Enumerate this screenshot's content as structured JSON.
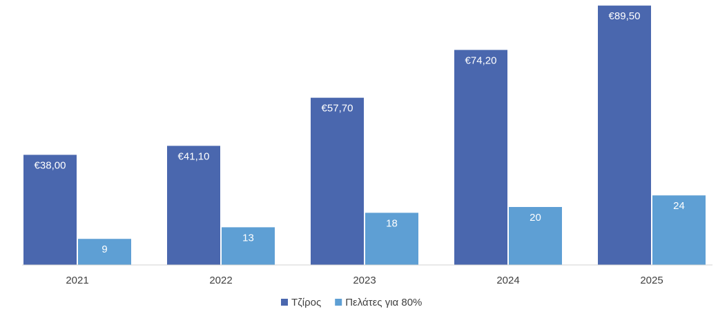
{
  "chart_data": {
    "type": "bar",
    "categories": [
      "2021",
      "2022",
      "2023",
      "2024",
      "2025"
    ],
    "series": [
      {
        "name": "Τζίρος",
        "color": "#4a67ae",
        "values": [
          38,
          41.1,
          57.7,
          74.2,
          89.5
        ],
        "value_labels": [
          "€38,00",
          "€41,10",
          "€57,70",
          "€74,20",
          "€89,50"
        ]
      },
      {
        "name": "Πελάτες για 80%",
        "color": "#5e9fd4",
        "values": [
          9,
          13,
          18,
          20,
          24
        ]
      }
    ],
    "ylim": [
      0,
      90
    ],
    "legend": "bottom"
  }
}
